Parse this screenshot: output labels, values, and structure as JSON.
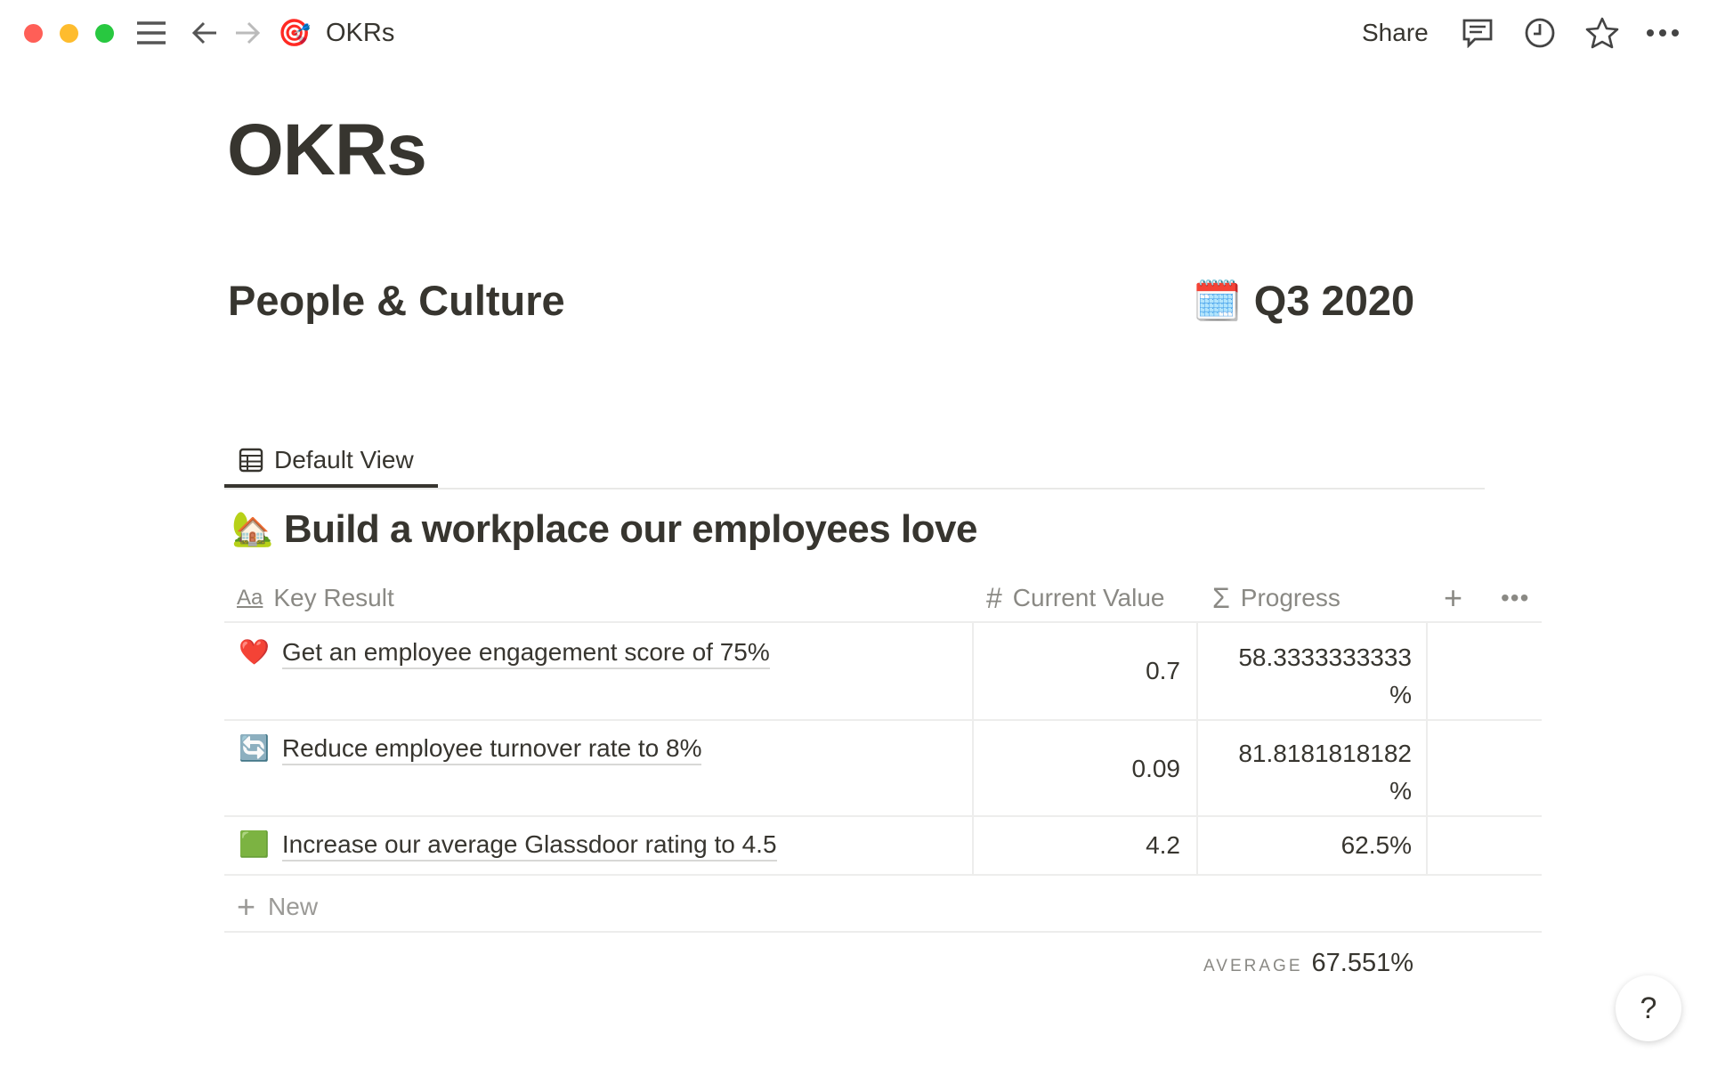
{
  "window": {
    "traffic_colors": [
      "#ff5f57",
      "#febc2e",
      "#28c840"
    ]
  },
  "topbar": {
    "page_icon": "🎯",
    "title": "OKRs",
    "share_label": "Share",
    "icons": [
      "menu-icon",
      "back-arrow-icon",
      "forward-arrow-icon",
      "comment-icon",
      "clock-icon",
      "star-icon",
      "more-icon"
    ]
  },
  "page": {
    "title": "OKRs",
    "team": "People & Culture",
    "quarter_icon": "🗓️",
    "quarter": "Q3 2020"
  },
  "view": {
    "tab_label": "Default View"
  },
  "group": {
    "icon": "🏡",
    "title": "Build a workplace our employees love"
  },
  "table": {
    "columns": [
      {
        "label": "Key Result",
        "icon": "Aa"
      },
      {
        "label": "Current Value",
        "icon": "#"
      },
      {
        "label": "Progress",
        "icon": "Σ"
      }
    ],
    "rows": [
      {
        "icon": "❤️",
        "key_result": "Get an employee engagement score of 75%",
        "current_value": "0.7",
        "progress_line1": "58.3333333333",
        "progress_line2": "%"
      },
      {
        "icon": "🔄",
        "key_result": "Reduce employee turnover rate to 8%",
        "current_value": "0.09",
        "progress_line1": "81.8181818182",
        "progress_line2": "%"
      },
      {
        "icon": "🟩",
        "key_result": "Increase our average Glassdoor rating to 4.5",
        "current_value": "4.2",
        "progress_line1": "62.5%",
        "progress_line2": ""
      }
    ],
    "new_label": "New",
    "footer": {
      "label": "AVERAGE",
      "value": "67.551%"
    }
  },
  "help": {
    "label": "?"
  }
}
